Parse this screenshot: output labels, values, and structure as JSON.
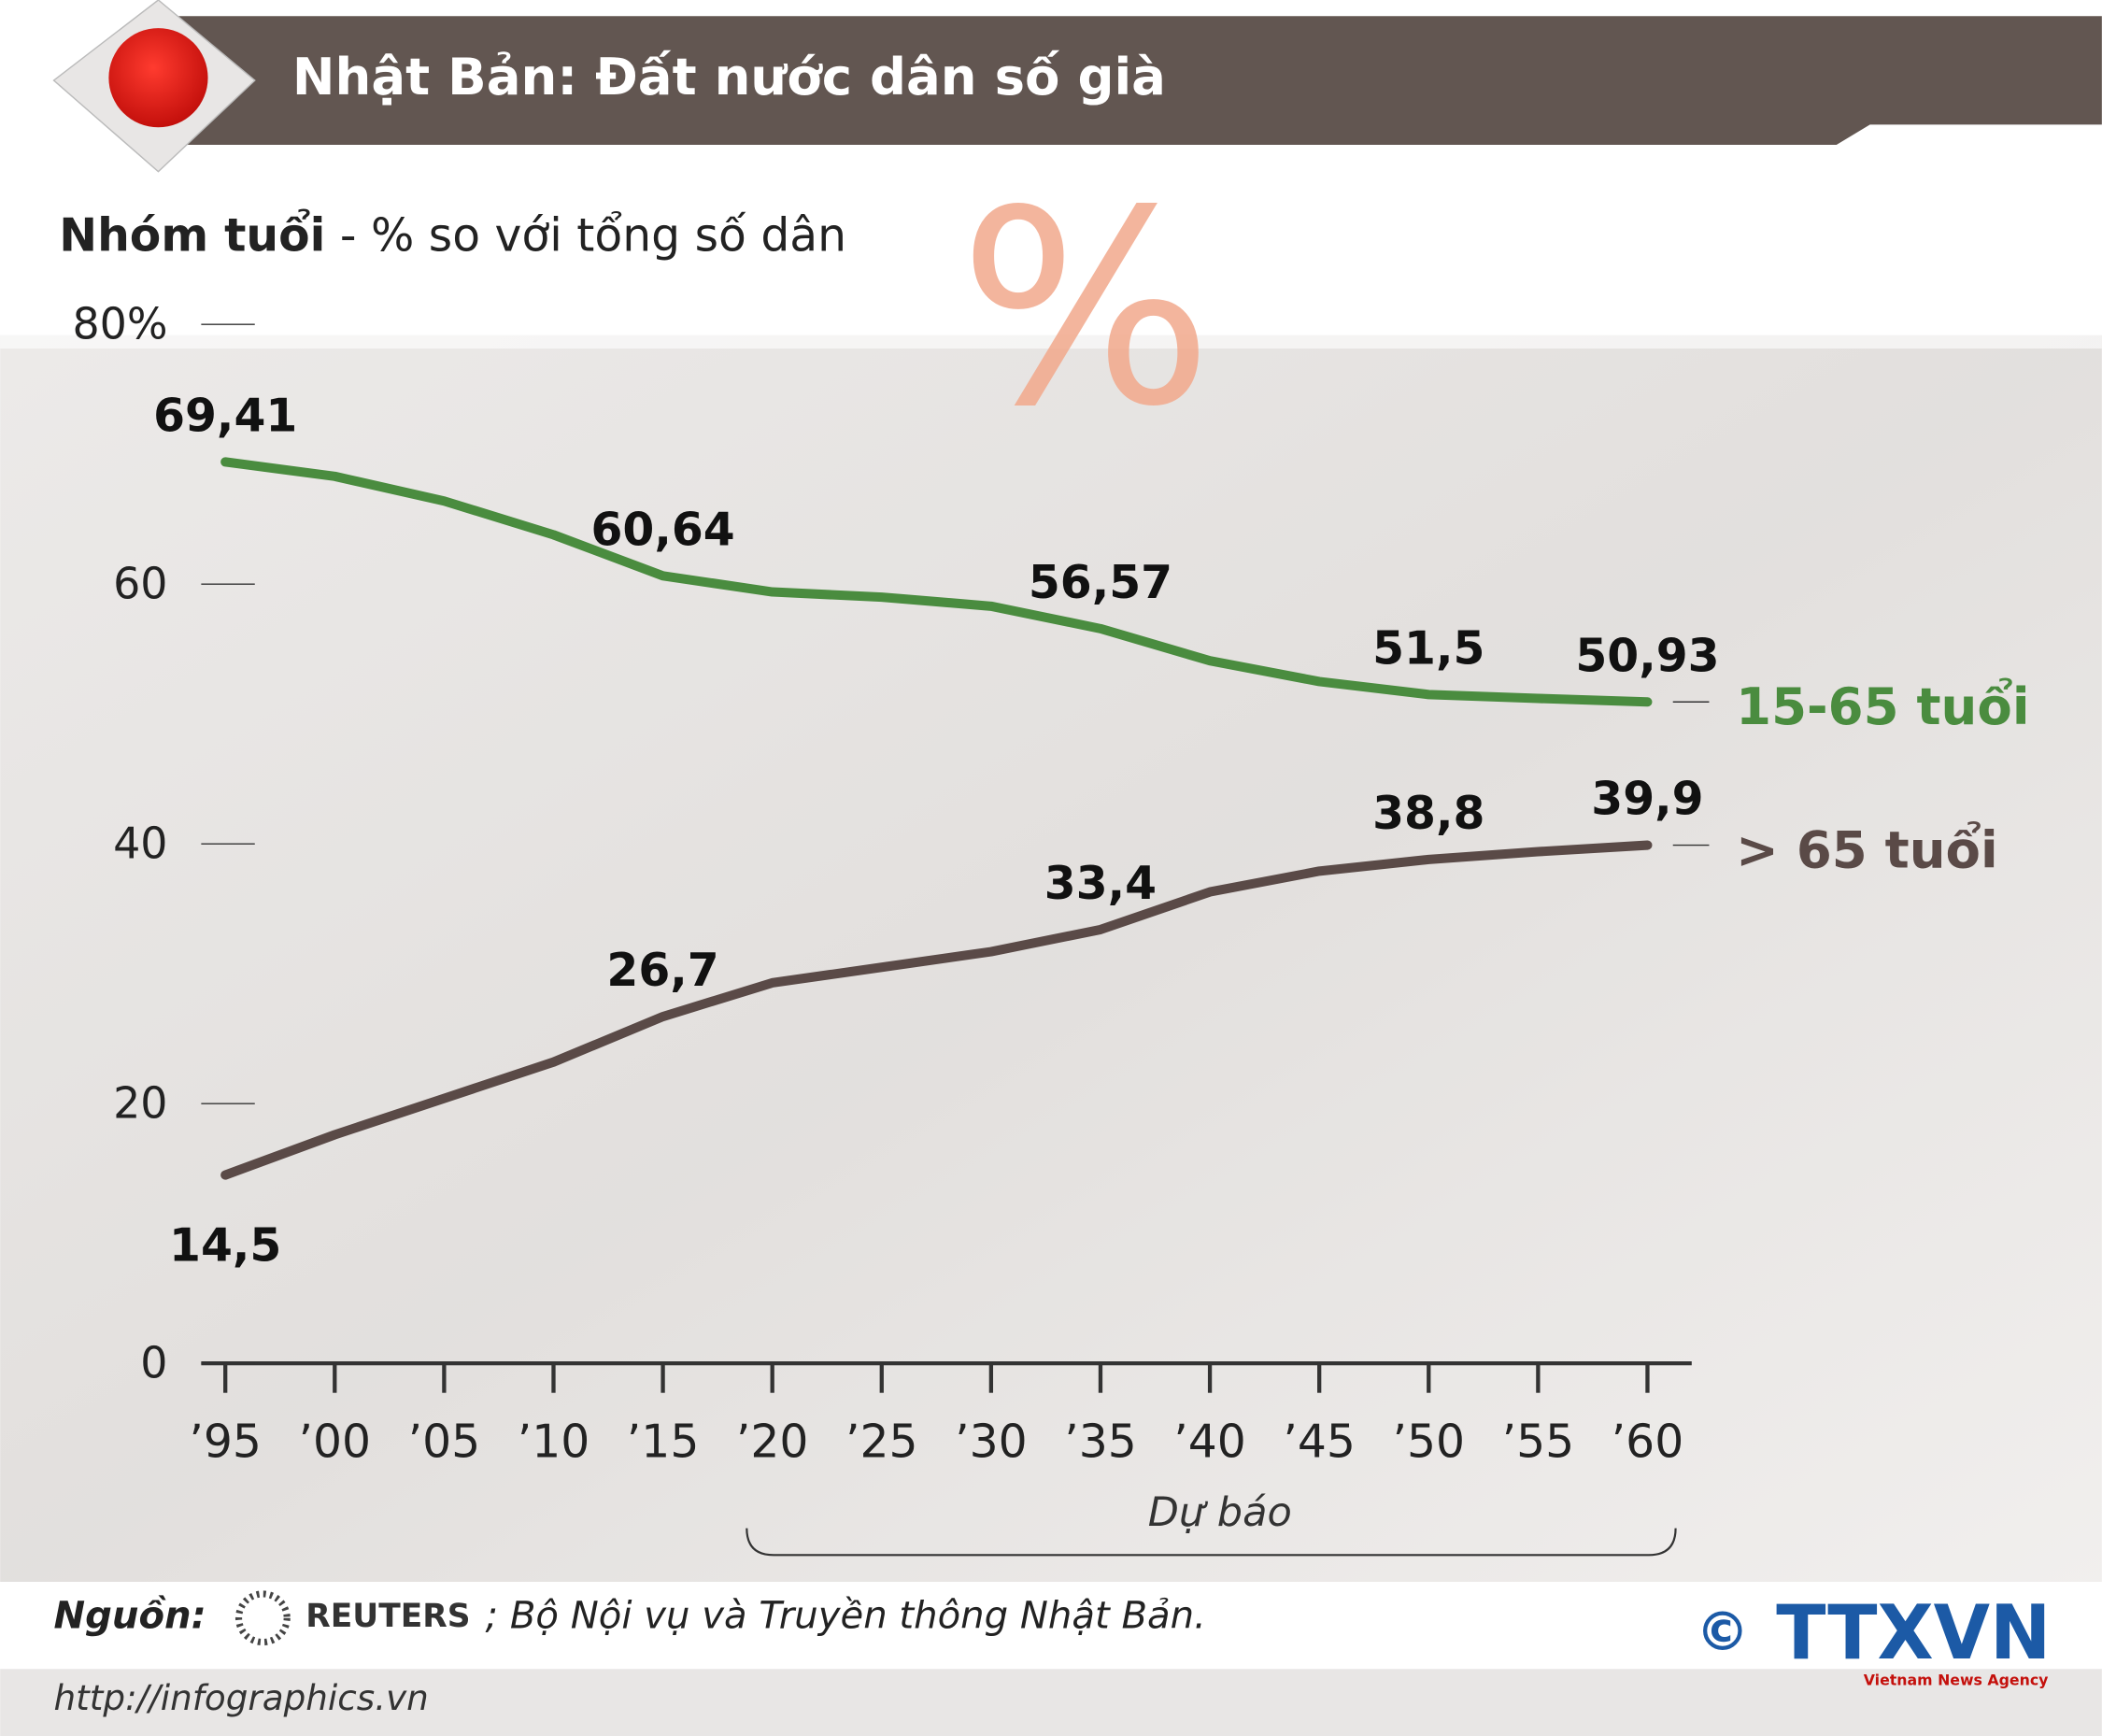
{
  "chart_data": {
    "type": "line",
    "title": "Nhật Bản: Đất nước dân số già",
    "subtitle_bold": "Nhóm tuổi",
    "subtitle": " - % so với tổng số dân",
    "decor_symbol": "%",
    "annotation": "Dự báo",
    "source_label": "Nguồn:",
    "source_agency": "REUTERS",
    "source_rest": "; Bộ Nội vụ và Truyền thông Nhật Bản.",
    "url": "http://infographics.vn",
    "copyright": "©",
    "logo": "TTXVN",
    "logo_subtitle": "Vietnam News Agency",
    "categories": [
      "’95",
      "’00",
      "’05",
      "’10",
      "’15",
      "’20",
      "’25",
      "’30",
      "’35",
      "’40",
      "’45",
      "’50",
      "’55",
      "’60"
    ],
    "ylim": [
      0,
      80
    ],
    "yticks": [
      0,
      20,
      40,
      60,
      {
        "value": 80,
        "label": "80%"
      }
    ],
    "series": [
      {
        "name": "15-65 tuổi",
        "color": "#4a8c3f",
        "values": [
          69.41,
          68.3,
          66.4,
          63.8,
          60.64,
          59.4,
          59.0,
          58.3,
          56.57,
          54.1,
          52.5,
          51.5,
          51.2,
          50.93
        ],
        "value_labels": [
          "69,41",
          null,
          null,
          null,
          "60,64",
          null,
          null,
          null,
          "56,57",
          null,
          null,
          "51,5",
          null,
          "50,93"
        ]
      },
      {
        "name": "> 65 tuổi",
        "color": "#5a4a47",
        "values": [
          14.5,
          17.6,
          20.4,
          23.2,
          26.7,
          29.3,
          30.5,
          31.7,
          33.4,
          36.3,
          37.9,
          38.8,
          39.4,
          39.9
        ],
        "value_labels": [
          "14,5",
          null,
          null,
          null,
          "26,7",
          null,
          null,
          null,
          "33,4",
          null,
          null,
          "38,8",
          null,
          "39,9"
        ]
      }
    ]
  }
}
